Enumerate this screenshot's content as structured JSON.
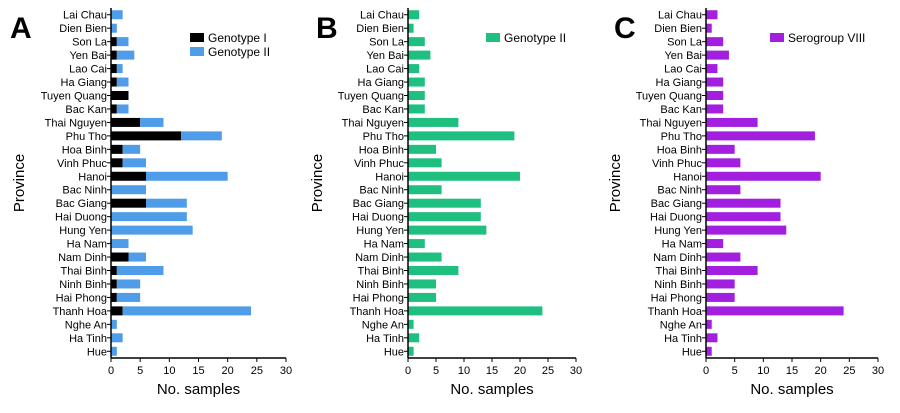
{
  "chart_data": [
    {
      "type": "bar",
      "orientation": "horizontal",
      "stacked": true,
      "panel_label": "A",
      "categories": [
        "Lai Chau",
        "Dien Bien",
        "Son La",
        "Yen Bai",
        "Lao Cai",
        "Ha Giang",
        "Tuyen Quang",
        "Bac Kan",
        "Thai Nguyen",
        "Phu Tho",
        "Hoa Binh",
        "Vinh Phuc",
        "Hanoi",
        "Bac Ninh",
        "Bac Giang",
        "Hai Duong",
        "Hung Yen",
        "Ha Nam",
        "Nam Dinh",
        "Thai Binh",
        "Ninh Binh",
        "Hai Phong",
        "Thanh Hoa",
        "Nghe An",
        "Ha Tinh",
        "Hue"
      ],
      "series": [
        {
          "name": "Genotype I",
          "color": "#000000",
          "values": [
            0,
            0,
            1,
            1,
            1,
            1,
            3,
            1,
            5,
            12,
            2,
            2,
            6,
            0,
            6,
            0,
            0,
            0,
            3,
            1,
            1,
            1,
            2,
            0,
            0,
            0
          ]
        },
        {
          "name": "Genotype II",
          "color": "#4f9de8",
          "values": [
            2,
            1,
            2,
            3,
            1,
            2,
            0,
            2,
            4,
            7,
            3,
            4,
            14,
            6,
            7,
            13,
            14,
            3,
            3,
            8,
            4,
            4,
            22,
            1,
            2,
            1
          ]
        }
      ],
      "xlabel": "No. samples",
      "ylabel": "Province",
      "xlim": [
        0,
        30
      ],
      "xticks": [
        0,
        5,
        10,
        15,
        20,
        25,
        30
      ],
      "legend": "top-right",
      "grid": false
    },
    {
      "type": "bar",
      "orientation": "horizontal",
      "panel_label": "B",
      "categories": [
        "Lai Chau",
        "Dien Bien",
        "Son La",
        "Yen Bai",
        "Lao Cai",
        "Ha Giang",
        "Tuyen Quang",
        "Bac Kan",
        "Thai Nguyen",
        "Phu Tho",
        "Hoa Binh",
        "Vinh Phuc",
        "Hanoi",
        "Bac Ninh",
        "Bac Giang",
        "Hai Duong",
        "Hung Yen",
        "Ha Nam",
        "Nam Dinh",
        "Thai Binh",
        "Ninh Binh",
        "Hai Phong",
        "Thanh Hoa",
        "Nghe An",
        "Ha Tinh",
        "Hue"
      ],
      "series": [
        {
          "name": "Genotype II",
          "color": "#1fbf80",
          "values": [
            2,
            1,
            3,
            4,
            2,
            3,
            3,
            3,
            9,
            19,
            5,
            6,
            20,
            6,
            13,
            13,
            14,
            3,
            6,
            9,
            5,
            5,
            24,
            1,
            2,
            1
          ]
        }
      ],
      "xlabel": "No. samples",
      "ylabel": "Province",
      "xlim": [
        0,
        30
      ],
      "xticks": [
        0,
        5,
        10,
        15,
        20,
        25,
        30
      ],
      "legend": "top-right",
      "grid": false
    },
    {
      "type": "bar",
      "orientation": "horizontal",
      "panel_label": "C",
      "categories": [
        "Lai Chau",
        "Dien Bien",
        "Son La",
        "Yen Bai",
        "Lao Cai",
        "Ha Giang",
        "Tuyen Quang",
        "Bac Kan",
        "Thai Nguyen",
        "Phu Tho",
        "Hoa Binh",
        "Vinh Phuc",
        "Hanoi",
        "Bac Ninh",
        "Bac Giang",
        "Hai Duong",
        "Hung Yen",
        "Ha Nam",
        "Nam Dinh",
        "Thai Binh",
        "Ninh Binh",
        "Hai Phong",
        "Thanh Hoa",
        "Nghe An",
        "Ha Tinh",
        "Hue"
      ],
      "series": [
        {
          "name": "Serogroup VIII",
          "color": "#a21fe0",
          "values": [
            2,
            1,
            3,
            4,
            2,
            3,
            3,
            3,
            9,
            19,
            5,
            6,
            20,
            6,
            13,
            13,
            14,
            3,
            6,
            9,
            5,
            5,
            24,
            1,
            2,
            1
          ]
        }
      ],
      "xlabel": "No. samples",
      "ylabel": "Province",
      "xlim": [
        0,
        30
      ],
      "xticks": [
        0,
        5,
        10,
        15,
        20,
        25,
        30
      ],
      "legend": "top-right",
      "grid": false
    }
  ]
}
